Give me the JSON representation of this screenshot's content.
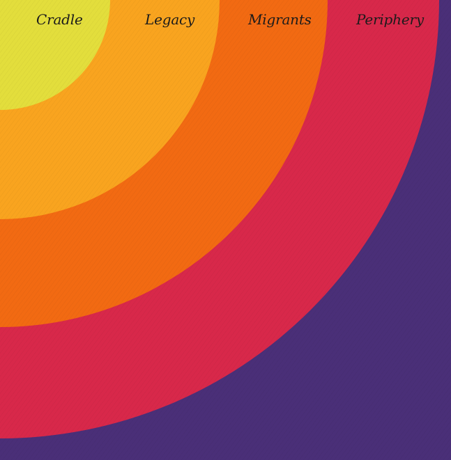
{
  "zones": [
    {
      "label": "Cradle",
      "color": "#e3de3c"
    },
    {
      "label": "Legacy",
      "color": "#f9a41f"
    },
    {
      "label": "Migrants",
      "color": "#f26a12"
    },
    {
      "label": "Periphery",
      "color": "#d8284a"
    }
  ],
  "outer_color": "#4a2f78"
}
